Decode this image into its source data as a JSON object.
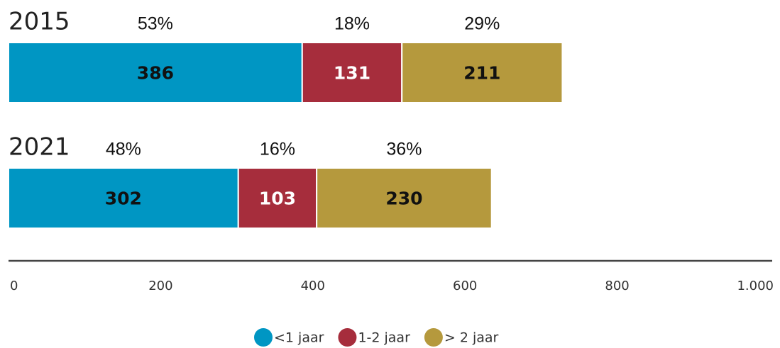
{
  "chart_data": {
    "type": "stacked-bar-horizontal",
    "categories": [
      "2015",
      "2021"
    ],
    "series": [
      {
        "name": "<1 jaar",
        "color": "#0096c3",
        "values": [
          386,
          302
        ],
        "share_labels": [
          "53%",
          "48%"
        ],
        "label_color": "#111"
      },
      {
        "name": "1-2 jaar",
        "color": "#a62d3c",
        "values": [
          131,
          103
        ],
        "share_labels": [
          "18%",
          "16%"
        ],
        "label_color": "#fff"
      },
      {
        "name": "> 2 jaar",
        "color": "#b5993d",
        "values": [
          211,
          230
        ],
        "share_labels": [
          "29%",
          "36%"
        ],
        "label_color": "#111"
      }
    ],
    "xlim": [
      0,
      1000
    ],
    "xticks": [
      0,
      200,
      400,
      600,
      800,
      {
        "value": 1000,
        "label": "1.000"
      }
    ]
  }
}
